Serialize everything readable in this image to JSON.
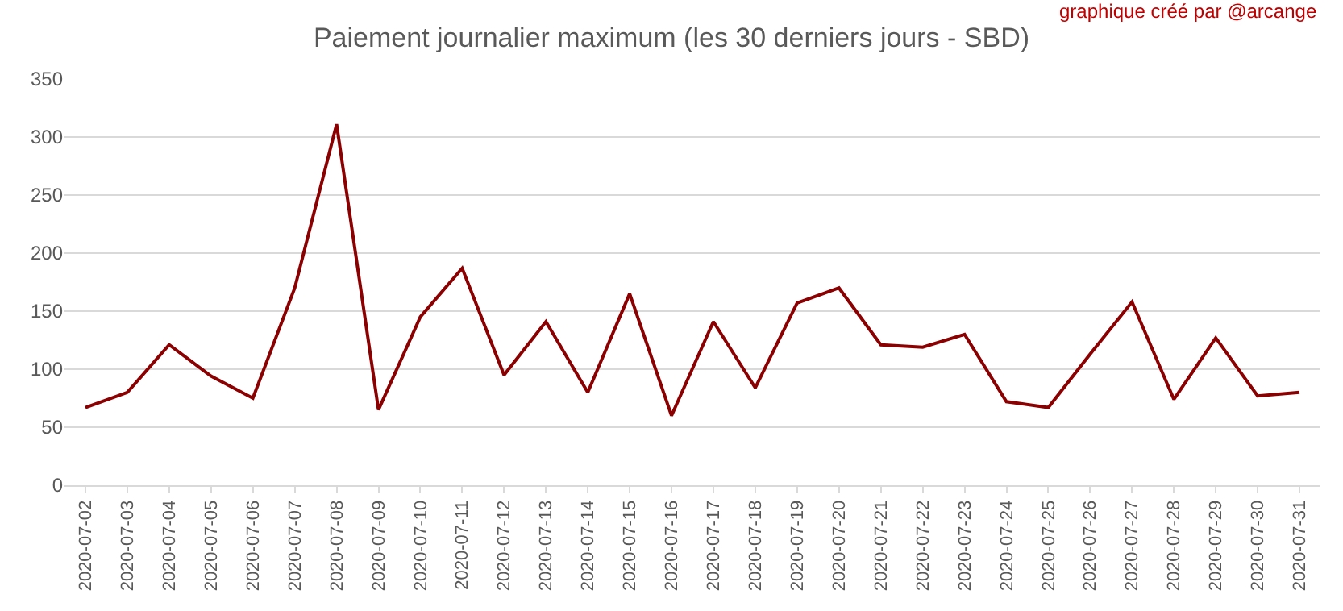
{
  "chart_data": {
    "type": "line",
    "title": "Paiement journalier maximum (les 30 derniers jours - SBD)",
    "annotations": [
      "graphique créé par @arcange"
    ],
    "categories": [
      "2020-07-02",
      "2020-07-03",
      "2020-07-04",
      "2020-07-05",
      "2020-07-06",
      "2020-07-07",
      "2020-07-08",
      "2020-07-09",
      "2020-07-10",
      "2020-07-11",
      "2020-07-12",
      "2020-07-13",
      "2020-07-14",
      "2020-07-15",
      "2020-07-16",
      "2020-07-17",
      "2020-07-18",
      "2020-07-19",
      "2020-07-20",
      "2020-07-21",
      "2020-07-22",
      "2020-07-23",
      "2020-07-24",
      "2020-07-25",
      "2020-07-26",
      "2020-07-27",
      "2020-07-28",
      "2020-07-29",
      "2020-07-30",
      "2020-07-31"
    ],
    "series": [
      {
        "color": "#8b0000",
        "values": [
          67,
          80,
          121,
          94,
          75,
          170,
          311,
          65,
          145,
          187,
          95,
          141,
          80,
          165,
          60,
          141,
          84,
          157,
          170,
          121,
          119,
          130,
          72,
          67,
          113,
          158,
          74,
          127,
          77,
          80
        ]
      }
    ],
    "ylim": [
      0,
      350
    ],
    "yticks": [
      0,
      50,
      100,
      150,
      200,
      250,
      300,
      350
    ],
    "grid": "y",
    "marker": "none",
    "line_style": "solid"
  }
}
